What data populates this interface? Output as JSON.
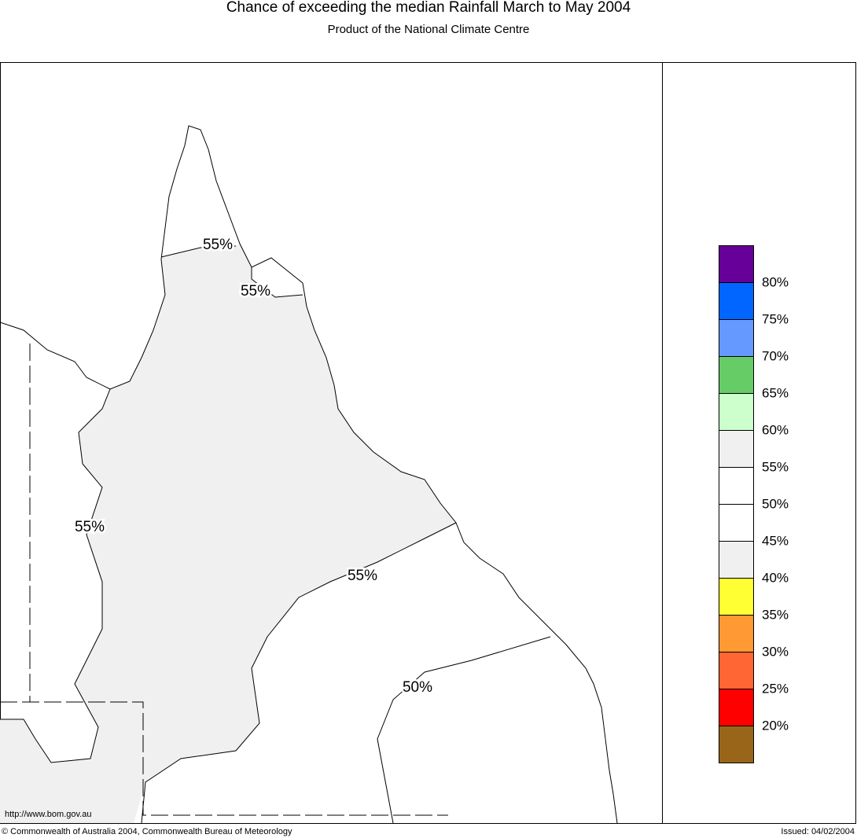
{
  "header": {
    "title": "Chance of exceeding the median Rainfall March to May 2004",
    "subtitle": "Product of the National Climate Centre"
  },
  "map": {
    "contour_labels": [
      "55%",
      "55%",
      "55%",
      "55%",
      "50%"
    ],
    "url": "http://www.bom.gov.au"
  },
  "legend": {
    "colors": [
      "#660099",
      "#0066ff",
      "#6699ff",
      "#66cc66",
      "#ccffcc",
      "#f0f0f0",
      "#ffffff",
      "#ffffff",
      "#f0f0f0",
      "#ffff33",
      "#ff9933",
      "#ff6633",
      "#ff0000",
      "#996619"
    ],
    "labels": [
      "80%",
      "75%",
      "70%",
      "65%",
      "60%",
      "55%",
      "50%",
      "45%",
      "40%",
      "35%",
      "30%",
      "25%",
      "20%"
    ]
  },
  "footer": {
    "copyright": "© Commonwealth of Australia 2004, Commonwealth Bureau of Meteorology",
    "issued": "Issued: 04/02/2004"
  }
}
